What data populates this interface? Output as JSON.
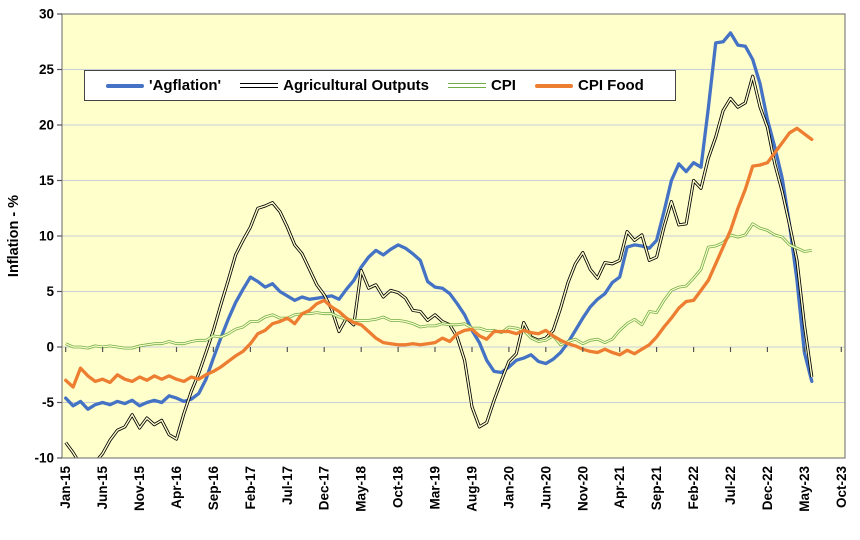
{
  "chart_data": {
    "type": "line",
    "title": "",
    "ylabel": "Inflation - %",
    "ylim": [
      -10,
      30
    ],
    "ytick_step": 5,
    "y_tick_labels": [
      "30",
      "25",
      "20",
      "15",
      "10",
      "5",
      "0",
      "-5",
      "-10"
    ],
    "grid": "horizontal",
    "plot_bg": "#FFFFCC",
    "grid_color": "#C9CFD9",
    "border_color": "#808080",
    "n_categories": 106,
    "x_start": "Jan-15",
    "x_axis_end": "Oct-23",
    "x_tick_every": 5,
    "x_tick_labels": [
      "Jan-15",
      "Jun-15",
      "Nov-15",
      "Apr-16",
      "Sep-16",
      "Feb-17",
      "Jul-17",
      "Dec-17",
      "May-18",
      "Oct-18",
      "Mar-19",
      "Aug-19",
      "Jan-20",
      "Jun-20",
      "Nov-20",
      "Apr-21",
      "Sep-21",
      "Feb-22",
      "Jul-22",
      "Dec-22",
      "May-23",
      "Oct-23"
    ],
    "legend_position": "top-left-inside",
    "series": [
      {
        "name": "'Agflation'",
        "color": "#4472C4",
        "style": "thick",
        "values": [
          -4.6,
          -5.3,
          -4.9,
          -5.6,
          -5.2,
          -5.0,
          -5.2,
          -4.9,
          -5.1,
          -4.8,
          -5.3,
          -5.0,
          -4.8,
          -5.0,
          -4.4,
          -4.6,
          -4.9,
          -4.7,
          -4.2,
          -2.9,
          -1.0,
          0.8,
          2.5,
          4.0,
          5.2,
          6.3,
          5.9,
          5.4,
          5.7,
          5.0,
          4.6,
          4.2,
          4.5,
          4.3,
          4.4,
          4.5,
          4.6,
          4.3,
          5.2,
          6.0,
          7.2,
          8.1,
          8.7,
          8.3,
          8.8,
          9.2,
          8.9,
          8.4,
          7.8,
          5.9,
          5.4,
          5.3,
          4.8,
          3.9,
          2.9,
          1.5,
          0.4,
          -1.2,
          -2.2,
          -2.3,
          -1.8,
          -1.2,
          -1.0,
          -0.7,
          -1.3,
          -1.5,
          -1.1,
          -0.5,
          0.4,
          1.5,
          2.6,
          3.6,
          4.3,
          4.8,
          5.8,
          6.3,
          9.0,
          9.2,
          9.1,
          8.9,
          9.6,
          12.2,
          15.0,
          16.5,
          15.8,
          16.6,
          16.2,
          21.5,
          27.4,
          27.5,
          28.3,
          27.2,
          27.1,
          25.9,
          23.7,
          20.5,
          18.0,
          15.2,
          11.0,
          6.0,
          -0.5,
          -3.1
        ]
      },
      {
        "name": "Agricultural Outputs",
        "color": "#000000",
        "style": "double",
        "values": [
          -8.6,
          -9.5,
          -10.6,
          -11.0,
          -10.4,
          -9.6,
          -8.4,
          -7.5,
          -7.2,
          -6.1,
          -7.3,
          -6.4,
          -7.0,
          -6.6,
          -7.9,
          -8.3,
          -6.0,
          -4.0,
          -2.4,
          -0.5,
          1.5,
          3.8,
          6.0,
          8.3,
          9.6,
          10.8,
          12.5,
          12.7,
          13.0,
          12.2,
          10.8,
          9.2,
          8.4,
          7.0,
          5.6,
          4.7,
          3.4,
          1.4,
          2.6,
          2.0,
          6.9,
          5.3,
          5.6,
          4.5,
          5.1,
          4.9,
          4.4,
          3.3,
          3.2,
          2.4,
          2.9,
          2.3,
          2.0,
          0.9,
          -1.2,
          -5.4,
          -7.2,
          -6.8,
          -4.8,
          -3.0,
          -1.3,
          -0.6,
          2.2,
          0.9,
          0.6,
          0.8,
          1.5,
          3.5,
          5.8,
          7.5,
          8.5,
          7.0,
          6.2,
          7.6,
          7.5,
          7.8,
          10.4,
          9.6,
          10.1,
          7.8,
          8.1,
          10.8,
          13.1,
          11.0,
          11.1,
          15.0,
          14.3,
          17.0,
          18.9,
          21.3,
          22.4,
          21.6,
          22.0,
          24.4,
          21.6,
          19.8,
          16.5,
          14.0,
          11.0,
          7.8,
          2.0,
          -2.7
        ]
      },
      {
        "name": "CPI",
        "color": "#70AD47",
        "style": "double",
        "values": [
          0.3,
          0.0,
          0.0,
          -0.1,
          0.1,
          0.0,
          0.1,
          0.0,
          -0.1,
          -0.1,
          0.1,
          0.2,
          0.3,
          0.3,
          0.5,
          0.3,
          0.3,
          0.5,
          0.6,
          0.6,
          1.0,
          0.9,
          1.2,
          1.6,
          1.8,
          2.3,
          2.3,
          2.7,
          2.9,
          2.6,
          2.6,
          2.9,
          3.0,
          3.0,
          3.1,
          3.0,
          3.0,
          2.7,
          2.5,
          2.4,
          2.4,
          2.4,
          2.5,
          2.7,
          2.4,
          2.4,
          2.3,
          2.1,
          1.8,
          1.9,
          1.9,
          2.1,
          2.0,
          2.0,
          2.1,
          1.7,
          1.7,
          1.5,
          1.5,
          1.3,
          1.8,
          1.7,
          1.5,
          0.8,
          0.5,
          0.6,
          1.0,
          0.2,
          0.5,
          0.7,
          0.3,
          0.6,
          0.7,
          0.4,
          0.7,
          1.5,
          2.1,
          2.5,
          2.0,
          3.2,
          3.1,
          4.2,
          5.1,
          5.4,
          5.5,
          6.2,
          7.0,
          9.0,
          9.1,
          9.4,
          10.1,
          9.9,
          10.1,
          11.1,
          10.7,
          10.5,
          10.1,
          9.9,
          9.2,
          8.9,
          8.6,
          8.7
        ]
      },
      {
        "name": "CPI Food",
        "color": "#ED7D31",
        "style": "thick",
        "values": [
          -3.0,
          -3.6,
          -1.9,
          -2.6,
          -3.1,
          -2.9,
          -3.2,
          -2.5,
          -2.9,
          -3.1,
          -2.7,
          -3.0,
          -2.6,
          -2.9,
          -2.6,
          -2.9,
          -3.1,
          -2.7,
          -2.9,
          -2.5,
          -2.2,
          -1.8,
          -1.3,
          -0.8,
          -0.4,
          0.3,
          1.2,
          1.5,
          2.1,
          2.3,
          2.6,
          2.1,
          3.0,
          3.3,
          3.9,
          4.2,
          3.6,
          3.2,
          2.6,
          2.2,
          2.0,
          1.4,
          0.8,
          0.4,
          0.3,
          0.2,
          0.2,
          0.3,
          0.2,
          0.3,
          0.4,
          0.8,
          0.5,
          1.2,
          1.5,
          1.6,
          1.0,
          0.7,
          1.4,
          1.4,
          1.4,
          1.2,
          1.5,
          1.3,
          1.2,
          1.5,
          1.0,
          0.6,
          0.3,
          0.1,
          -0.2,
          -0.4,
          -0.5,
          -0.2,
          -0.5,
          -0.7,
          -0.3,
          -0.6,
          -0.2,
          0.2,
          0.9,
          1.8,
          2.6,
          3.5,
          4.1,
          4.2,
          5.1,
          6.0,
          7.5,
          9.0,
          10.5,
          12.5,
          14.2,
          16.3,
          16.4,
          16.6,
          17.5,
          18.4,
          19.3,
          19.7,
          19.2,
          18.7
        ]
      }
    ]
  }
}
